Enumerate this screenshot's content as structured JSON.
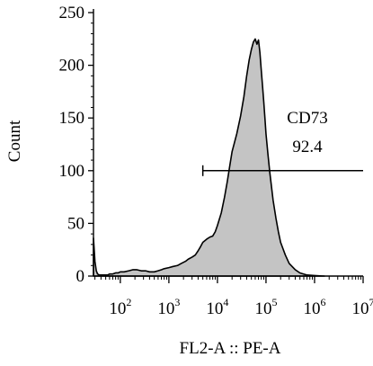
{
  "chart_data": {
    "type": "area",
    "title": "",
    "xlabel": "FL2-A :: PE-A",
    "ylabel": "Count",
    "x_scale": "log",
    "xlim": [
      28,
      10000000
    ],
    "ylim": [
      0,
      250
    ],
    "y_ticks": [
      "0",
      "50",
      "100",
      "150",
      "200",
      "250"
    ],
    "x_ticks": [
      {
        "base": "10",
        "exp": "2",
        "value": 100
      },
      {
        "base": "10",
        "exp": "3",
        "value": 1000
      },
      {
        "base": "10",
        "exp": "4",
        "value": 10000
      },
      {
        "base": "10",
        "exp": "5",
        "value": 100000
      },
      {
        "base": "10",
        "exp": "6",
        "value": 1000000
      },
      {
        "base": "10",
        "exp": "7",
        "value": 10000000
      }
    ],
    "fill_color": "#c4c4c4",
    "line_color": "#000000",
    "series": [
      {
        "x": [
          28,
          30,
          32,
          34,
          37,
          40,
          45,
          50,
          55,
          60,
          70,
          80,
          90,
          100,
          120,
          150,
          180,
          220,
          270,
          330,
          400,
          500,
          600,
          700,
          800,
          1000,
          1200,
          1500,
          1800,
          2200,
          2500,
          3000,
          3500,
          4000,
          4500,
          5000,
          6000,
          7000,
          8000,
          9000,
          10000,
          12000,
          14000,
          16000,
          18000,
          20000,
          25000,
          30000,
          35000,
          40000,
          45000,
          50000,
          55000,
          60000,
          65000,
          70000,
          75000,
          80000,
          85000,
          90000,
          95000,
          100000,
          110000,
          120000,
          140000,
          160000,
          180000,
          200000,
          250000,
          300000,
          400000,
          500000,
          700000,
          1000000,
          1300000,
          1600000
        ],
        "y": [
          36,
          14,
          5,
          2,
          1,
          1,
          1,
          1,
          1,
          2,
          2,
          3,
          3,
          4,
          4,
          5,
          6,
          6,
          5,
          5,
          4,
          4,
          5,
          6,
          7,
          8,
          9,
          10,
          12,
          14,
          16,
          18,
          20,
          24,
          28,
          32,
          35,
          37,
          38,
          42,
          48,
          60,
          75,
          90,
          105,
          118,
          135,
          152,
          170,
          190,
          205,
          215,
          222,
          225,
          220,
          224,
          212,
          195,
          180,
          165,
          150,
          135,
          115,
          98,
          72,
          55,
          42,
          32,
          20,
          12,
          6,
          3,
          1,
          0.5,
          0.2,
          0
        ]
      }
    ],
    "gate": {
      "name": "CD73",
      "value": "92.4",
      "x_start": 5000,
      "x_end": 10000000,
      "y": 100
    }
  }
}
